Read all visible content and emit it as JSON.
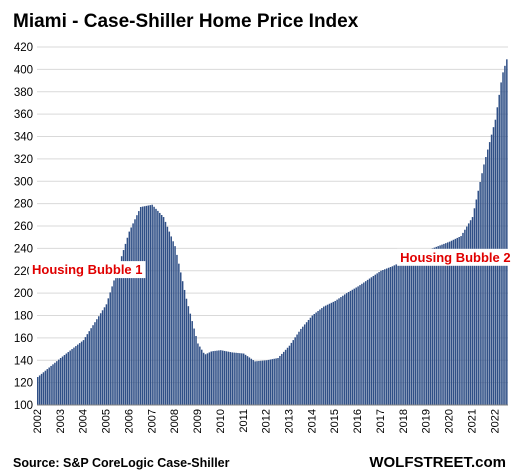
{
  "chart_data": {
    "type": "bar",
    "title": "Miami - Case-Shiller Home Price Index",
    "xlabel": "",
    "ylabel": "",
    "ylim": [
      100,
      420
    ],
    "yticks": [
      100,
      120,
      140,
      160,
      180,
      200,
      220,
      240,
      260,
      280,
      300,
      320,
      340,
      360,
      380,
      400,
      420
    ],
    "x_tick_labels": [
      "2002",
      "2003",
      "2004",
      "2005",
      "2006",
      "2007",
      "2008",
      "2009",
      "2010",
      "2011",
      "2012",
      "2013",
      "2014",
      "2015",
      "2016",
      "2017",
      "2018",
      "2019",
      "2020",
      "2021",
      "2022"
    ],
    "x_start_year": 2002,
    "bars_per_year": 12,
    "grid": true,
    "bar_color": "#2f4f86",
    "annotations": [
      {
        "text": "Housing Bubble 1",
        "color": "#e00000",
        "year": 2002.0,
        "value": 217
      },
      {
        "text": "Housing Bubble 2",
        "color": "#e00000",
        "year": 2018.1,
        "value": 228
      }
    ],
    "anchors": [
      [
        2002.0,
        125
      ],
      [
        2003.0,
        142
      ],
      [
        2004.0,
        158
      ],
      [
        2005.0,
        190
      ],
      [
        2005.5,
        222
      ],
      [
        2006.0,
        255
      ],
      [
        2006.5,
        277
      ],
      [
        2007.0,
        279
      ],
      [
        2007.5,
        268
      ],
      [
        2008.0,
        242
      ],
      [
        2008.5,
        195
      ],
      [
        2009.0,
        155
      ],
      [
        2009.3,
        145
      ],
      [
        2009.6,
        148
      ],
      [
        2010.0,
        149
      ],
      [
        2010.5,
        147
      ],
      [
        2011.0,
        146
      ],
      [
        2011.5,
        139
      ],
      [
        2012.0,
        140
      ],
      [
        2012.5,
        142
      ],
      [
        2013.0,
        153
      ],
      [
        2013.5,
        168
      ],
      [
        2014.0,
        180
      ],
      [
        2014.5,
        188
      ],
      [
        2015.0,
        193
      ],
      [
        2015.5,
        200
      ],
      [
        2016.0,
        206
      ],
      [
        2016.5,
        213
      ],
      [
        2017.0,
        220
      ],
      [
        2017.5,
        224
      ],
      [
        2018.0,
        229
      ],
      [
        2018.5,
        233
      ],
      [
        2019.0,
        238
      ],
      [
        2019.5,
        242
      ],
      [
        2020.0,
        246
      ],
      [
        2020.5,
        251
      ],
      [
        2021.0,
        268
      ],
      [
        2021.5,
        315
      ],
      [
        2022.0,
        355
      ],
      [
        2022.3,
        395
      ],
      [
        2022.5,
        409
      ],
      [
        2022.6,
        408
      ]
    ],
    "source": "Source: S&P CoreLogic Case-Shiller",
    "brand": "WOLFSTREET.com"
  }
}
